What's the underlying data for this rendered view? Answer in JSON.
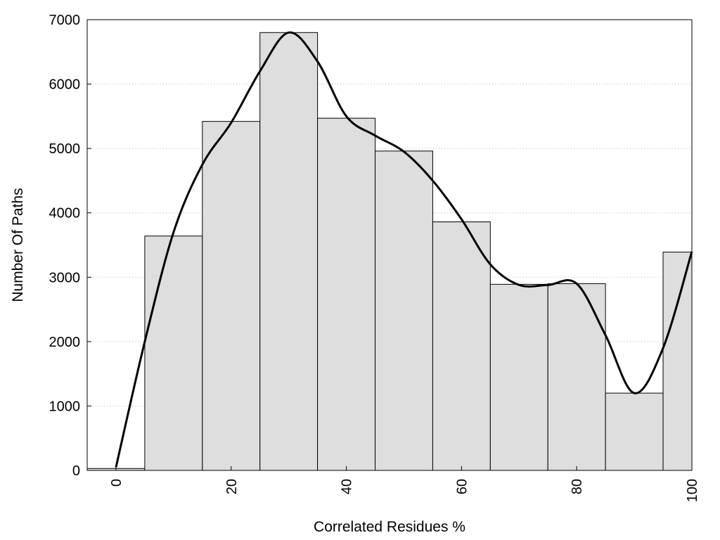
{
  "chart_data": {
    "type": "bar",
    "xlabel": "Correlated Residues %",
    "ylabel": "Number Of Paths",
    "xlim": [
      -5,
      100
    ],
    "ylim": [
      0,
      7000
    ],
    "grid": "horizontal dotted",
    "xticks": [
      0,
      20,
      40,
      60,
      80,
      100
    ],
    "yticks": [
      0,
      1000,
      2000,
      3000,
      4000,
      5000,
      6000,
      7000
    ],
    "bin_width": 10,
    "categories": [
      0,
      10,
      20,
      30,
      40,
      50,
      60,
      70,
      80,
      90,
      100
    ],
    "values": [
      30,
      3640,
      5420,
      6800,
      5470,
      4960,
      3860,
      2890,
      2900,
      1200,
      3390
    ],
    "curve": {
      "x": [
        0,
        5,
        10,
        15,
        20,
        25,
        30,
        35,
        40,
        45,
        50,
        55,
        60,
        65,
        70,
        75,
        80,
        85,
        90,
        95,
        100
      ],
      "y": [
        50,
        2000,
        3700,
        4750,
        5400,
        6200,
        6800,
        6350,
        5500,
        5200,
        4950,
        4500,
        3900,
        3200,
        2880,
        2880,
        2900,
        2100,
        1200,
        1900,
        3400
      ]
    },
    "colors": {
      "bar_fill": "#dedede",
      "bar_stroke": "#000000",
      "curve": "#000000",
      "grid": "#bbbbbb"
    }
  }
}
